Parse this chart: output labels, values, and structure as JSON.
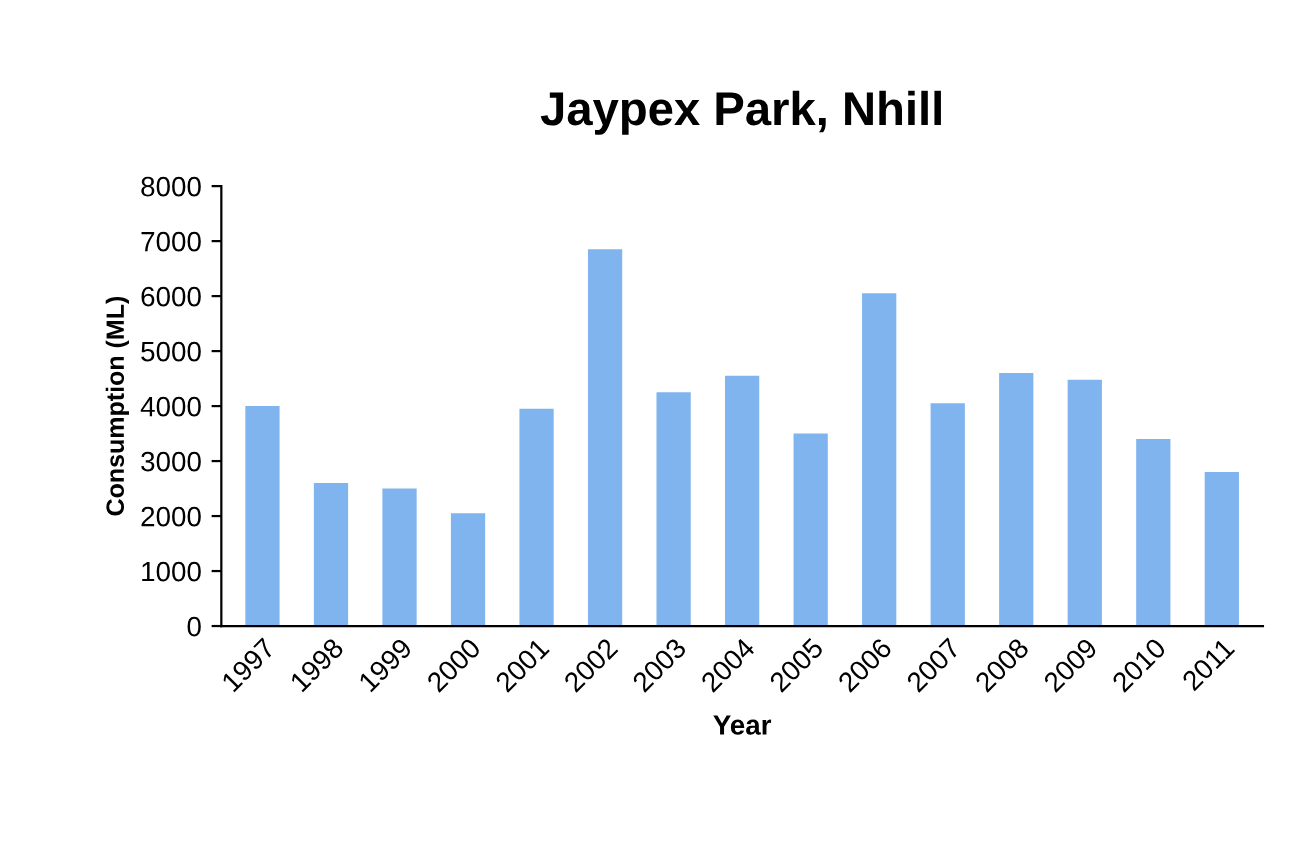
{
  "chart_data": {
    "type": "bar",
    "title": "Jaypex Park, Nhill",
    "xlabel": "Year",
    "ylabel": "Consumption (ML)",
    "categories": [
      "1997",
      "1998",
      "1999",
      "2000",
      "2001",
      "2002",
      "2003",
      "2004",
      "2005",
      "2006",
      "2007",
      "2008",
      "2009",
      "2010",
      "2011"
    ],
    "values": [
      4000,
      2600,
      2500,
      2050,
      3950,
      6850,
      4250,
      4550,
      3500,
      6050,
      4050,
      4600,
      4480,
      3400,
      2800
    ],
    "color": "#80b4ee",
    "ylim": [
      0,
      8000
    ],
    "yticks": [
      0,
      1000,
      2000,
      3000,
      4000,
      5000,
      6000,
      7000,
      8000
    ],
    "grid": false,
    "legend": false
  }
}
